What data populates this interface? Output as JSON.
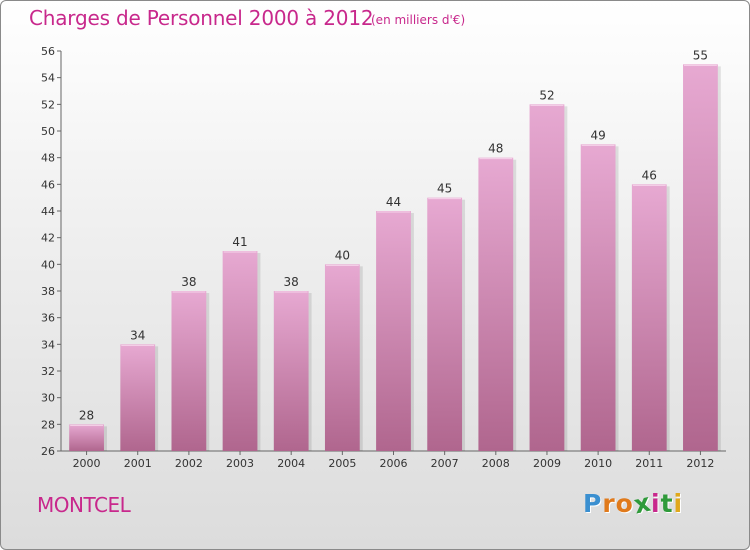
{
  "header": {
    "title": "Charges de Personnel 2000 à 2012",
    "subtitle": "(en milliers d'€)"
  },
  "footer": {
    "commune": "MONTCEL",
    "logo": {
      "letters": [
        "P",
        "r",
        "o",
        "x",
        "i",
        "t",
        "i"
      ],
      "colors": [
        "#3a8fd0",
        "#e07a1c",
        "#e07a1c",
        "#2f9a3a",
        "#c8288c",
        "#2f9a3a",
        "#e0a81c"
      ]
    }
  },
  "chart_data": {
    "type": "bar",
    "categories": [
      "2000",
      "2001",
      "2002",
      "2003",
      "2004",
      "2005",
      "2006",
      "2007",
      "2008",
      "2009",
      "2010",
      "2011",
      "2012"
    ],
    "values": [
      28,
      34,
      38,
      41,
      38,
      40,
      44,
      45,
      48,
      52,
      49,
      46,
      55
    ],
    "ylim": [
      26,
      56
    ],
    "yticks": [
      26,
      28,
      30,
      32,
      34,
      36,
      38,
      40,
      42,
      44,
      46,
      48,
      50,
      52,
      54,
      56
    ],
    "grid": false,
    "colors": {
      "bar_top": "#e7a9d2",
      "bar_bottom": "#b0668e",
      "text": "#333333",
      "axis": "#666666"
    }
  }
}
